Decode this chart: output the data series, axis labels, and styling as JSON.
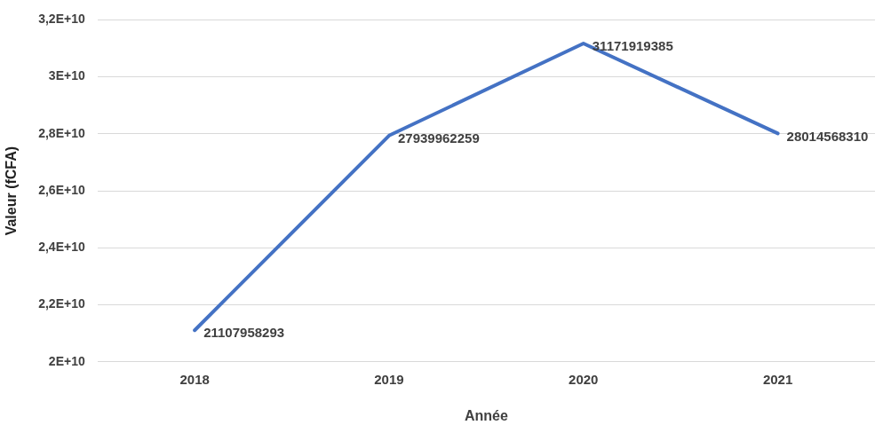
{
  "chart_data": {
    "type": "line",
    "xlabel": "Année",
    "ylabel": "Valeur (fCFA)",
    "categories": [
      "2018",
      "2019",
      "2020",
      "2021"
    ],
    "series": [
      {
        "color": "#4472c4",
        "values": [
          21107958293,
          27939962259,
          31171919385,
          28014568310
        ]
      }
    ],
    "ylim": [
      20000000000,
      32000000000
    ],
    "yticks": [
      {
        "value": 20000000000,
        "label": "2E+10"
      },
      {
        "value": 22000000000,
        "label": "2,2E+10"
      },
      {
        "value": 24000000000,
        "label": "2,4E+10"
      },
      {
        "value": 26000000000,
        "label": "2,6E+10"
      },
      {
        "value": 28000000000,
        "label": "2,8E+10"
      },
      {
        "value": 30000000000,
        "label": "3E+10"
      },
      {
        "value": 32000000000,
        "label": "3,2E+10"
      }
    ],
    "grid": "y",
    "legend": false,
    "marker": "none",
    "line_style": "solid",
    "data_labels": true
  }
}
